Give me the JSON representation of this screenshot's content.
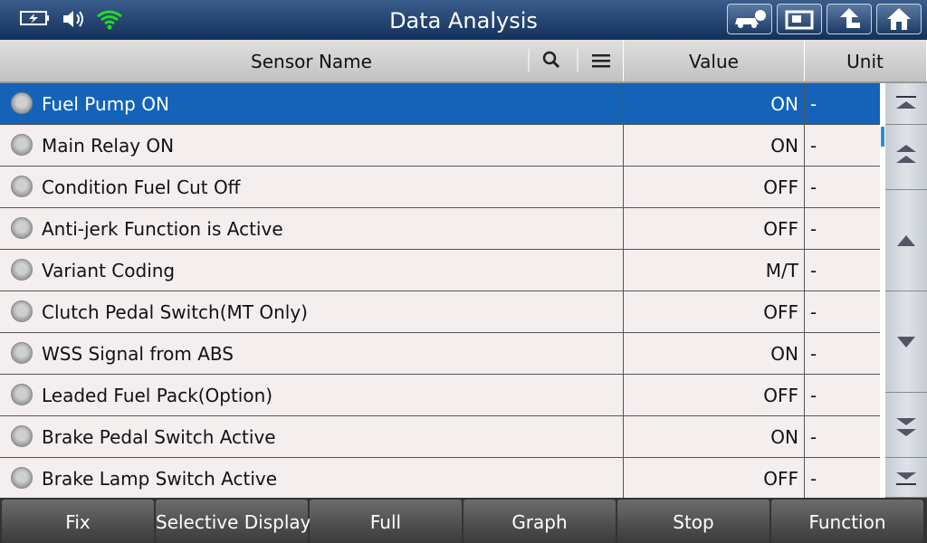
{
  "header": {
    "title": "Data Analysis"
  },
  "table": {
    "columns": [
      "Sensor Name",
      "Value",
      "Unit"
    ],
    "rows": [
      [
        "Fuel Pump ON",
        "ON",
        "-"
      ],
      [
        "Main Relay ON",
        "ON",
        "-"
      ],
      [
        "Condition Fuel Cut Off",
        "OFF",
        "-"
      ],
      [
        "Anti-jerk Function is Active",
        "OFF",
        "-"
      ],
      [
        "Variant Coding",
        "M/T",
        "-"
      ],
      [
        "Clutch Pedal Switch(MT Only)",
        "OFF",
        "-"
      ],
      [
        "WSS Signal from ABS",
        "ON",
        "-"
      ],
      [
        "Leaded Fuel Pack(Option)",
        "OFF",
        "-"
      ],
      [
        "Brake Pedal Switch Active",
        "ON",
        "-"
      ],
      [
        "Brake Lamp Switch Active",
        "OFF",
        "-"
      ]
    ]
  },
  "buttons": [
    "Fix",
    "Selective Display",
    "Full",
    "Graph",
    "Stop",
    "Function"
  ]
}
